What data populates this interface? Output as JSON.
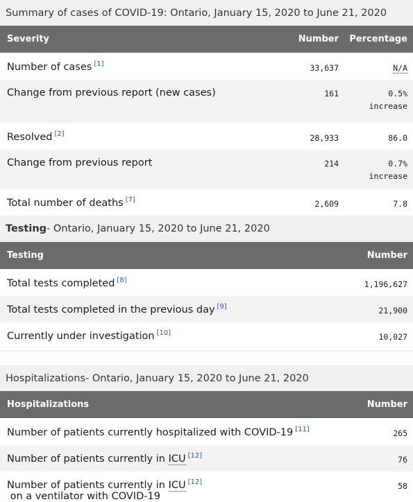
{
  "summary": {
    "caption": "Summary of cases of COVID-19: Ontario, January 15, 2020 to June 21, 2020",
    "headers": {
      "severity": "Severity",
      "number": "Number",
      "percentage": "Percentage"
    },
    "rows": [
      {
        "label": "Number of cases",
        "ref": "[1]",
        "number": "33,637",
        "pct": "N/A",
        "pct2": ""
      },
      {
        "label": "Change from previous report (new cases)",
        "ref": "",
        "number": "161",
        "pct": "0.5%",
        "pct2": "increase"
      },
      {
        "label": "Resolved",
        "ref": "[2]",
        "number": "28,933",
        "pct": "86.0",
        "pct2": ""
      },
      {
        "label": "Change from previous report",
        "ref": "",
        "number": "214",
        "pct": "0.7%",
        "pct2": "increase"
      },
      {
        "label": "Total number of deaths",
        "ref": "[7]",
        "number": "2,609",
        "pct": "7.8",
        "pct2": ""
      }
    ]
  },
  "testing": {
    "caption_bold": "Testing",
    "caption_rest": " - Ontario, January 15, 2020 to June 21, 2020",
    "headers": {
      "label": "Testing",
      "number": "Number"
    },
    "rows": [
      {
        "label": "Total tests completed",
        "ref": "[8]",
        "number": "1,196,627"
      },
      {
        "label": "Total tests completed in the previous day",
        "ref": "[9]",
        "number": "21,900"
      },
      {
        "label": "Currently under investigation",
        "ref": "[10]",
        "number": "10,027"
      }
    ]
  },
  "hospitalizations": {
    "caption_bold": "Hospitalizations",
    "caption_rest": " - Ontario, January 15, 2020 to June 21, 2020",
    "headers": {
      "label": "Hospitalizations",
      "number": "Number"
    },
    "rows": [
      {
        "label": "Number of patients currently hospitalized with COVID-19",
        "ref": "[11]",
        "number": "265"
      },
      {
        "label": "Number of patients currently in",
        "abbr": "ICU",
        "ref": "[12]",
        "after": "",
        "number": "76"
      },
      {
        "label": "Number of patients currently in",
        "abbr": "ICU",
        "ref": "[12]",
        "after": " on a ventilator with COVID-19",
        "number": "58"
      }
    ]
  }
}
